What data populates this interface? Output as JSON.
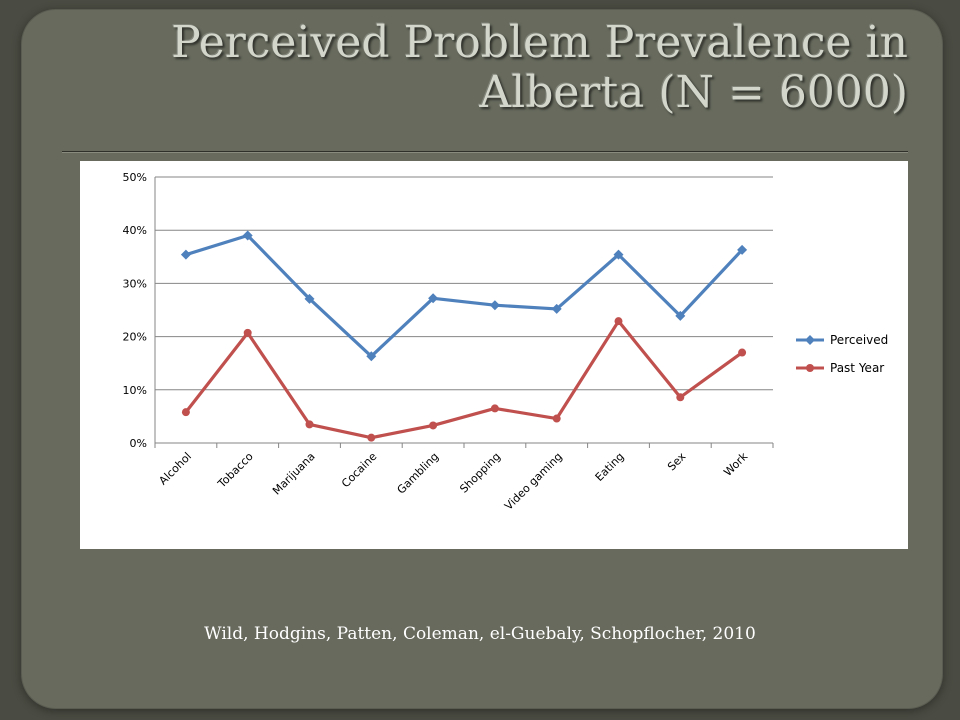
{
  "slide": {
    "title_line1": "Perceived Problem Prevalence in",
    "title_line2": "Alberta (N = 6000)",
    "citation": "Wild, Hodgins, Patten, Coleman, el-Guebaly, Schopflocher, 2010"
  },
  "chart_data": {
    "type": "line",
    "title": "",
    "xlabel": "",
    "ylabel": "",
    "categories": [
      "Alcohol",
      "Tobacco",
      "Marijuana",
      "Cocaine",
      "Gambling",
      "Shopping",
      "Video gaming",
      "Eating",
      "Sex",
      "Work"
    ],
    "ylim": [
      0,
      50
    ],
    "yticks": [
      0,
      10,
      20,
      30,
      40,
      50
    ],
    "ytick_labels": [
      "0%",
      "10%",
      "20%",
      "30%",
      "40%",
      "50%"
    ],
    "grid": true,
    "legend": "right",
    "series": [
      {
        "name": "Perceived",
        "color": "#4f81bd",
        "marker": "diamond",
        "values": [
          35.4,
          39.0,
          27.1,
          16.3,
          27.2,
          25.9,
          25.2,
          35.4,
          23.9,
          36.3
        ]
      },
      {
        "name": "Past Year",
        "color": "#c0504d",
        "marker": "circle",
        "values": [
          5.8,
          20.7,
          3.5,
          1.0,
          3.3,
          6.5,
          4.6,
          22.9,
          8.6,
          17.0
        ]
      }
    ]
  }
}
